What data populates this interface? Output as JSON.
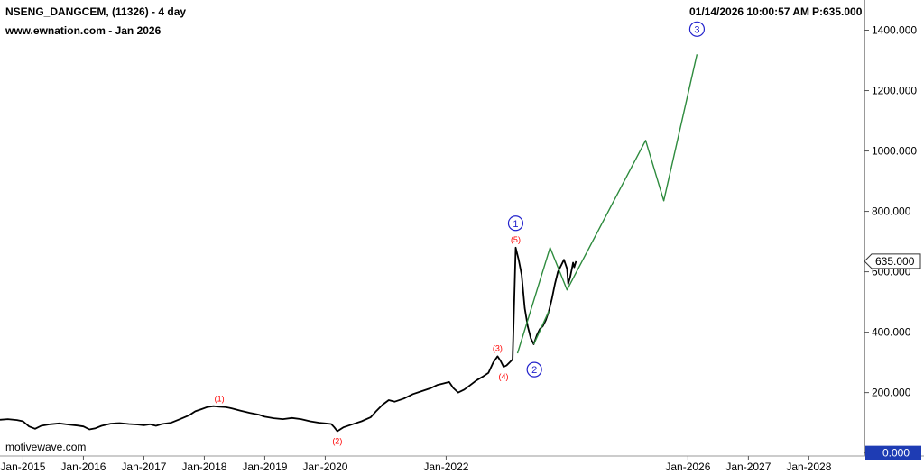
{
  "header": {
    "title": "NSENG_DANGCEM, (11326) - 4 day",
    "subtitle": "www.ewnation.com  - Jan 2026",
    "timestamp": "01/14/2026 10:00:57 AM",
    "price_label": "P:635.000"
  },
  "watermark": "motivewave.com",
  "chart_data": {
    "type": "line",
    "title": "NSENG_DANGCEM, (11326) - 4 day",
    "xlabel": "",
    "ylabel": "",
    "xlim": [
      2014.62,
      2028.92
    ],
    "ylim": [
      -10,
      1500
    ],
    "x_ticks": [
      {
        "x": 2015.0,
        "label": "Jan-2015"
      },
      {
        "x": 2016.0,
        "label": "Jan-2016"
      },
      {
        "x": 2017.0,
        "label": "Jan-2017"
      },
      {
        "x": 2018.0,
        "label": "Jan-2018"
      },
      {
        "x": 2019.0,
        "label": "Jan-2019"
      },
      {
        "x": 2020.0,
        "label": "Jan-2020"
      },
      {
        "x": 2022.0,
        "label": "Jan-2022"
      },
      {
        "x": 2026.0,
        "label": "Jan-2026"
      },
      {
        "x": 2027.0,
        "label": "Jan-2027"
      },
      {
        "x": 2028.0,
        "label": "Jan-2028"
      }
    ],
    "y_ticks": [
      {
        "y": 1400,
        "label": "1400.000"
      },
      {
        "y": 1200,
        "label": "1200.000"
      },
      {
        "y": 1000,
        "label": "1000.000"
      },
      {
        "y": 800,
        "label": "800.000"
      },
      {
        "y": 600,
        "label": "600.000"
      },
      {
        "y": 400,
        "label": "400.000"
      },
      {
        "y": 200,
        "label": "200.000"
      },
      {
        "y": 0,
        "label": "0.000"
      }
    ],
    "current_price": {
      "y": 635,
      "label": "635.000"
    },
    "series": [
      {
        "role": "price",
        "color": "#000000",
        "points": [
          [
            2014.62,
            110
          ],
          [
            2014.75,
            112
          ],
          [
            2014.9,
            109
          ],
          [
            2015.0,
            105
          ],
          [
            2015.1,
            88
          ],
          [
            2015.2,
            80
          ],
          [
            2015.3,
            90
          ],
          [
            2015.45,
            95
          ],
          [
            2015.6,
            98
          ],
          [
            2015.75,
            94
          ],
          [
            2015.9,
            91
          ],
          [
            2016.0,
            88
          ],
          [
            2016.1,
            78
          ],
          [
            2016.2,
            82
          ],
          [
            2016.3,
            90
          ],
          [
            2016.45,
            97
          ],
          [
            2016.6,
            99
          ],
          [
            2016.75,
            96
          ],
          [
            2016.9,
            94
          ],
          [
            2017.0,
            92
          ],
          [
            2017.1,
            95
          ],
          [
            2017.2,
            90
          ],
          [
            2017.3,
            96
          ],
          [
            2017.45,
            100
          ],
          [
            2017.6,
            112
          ],
          [
            2017.75,
            125
          ],
          [
            2017.85,
            138
          ],
          [
            2017.95,
            145
          ],
          [
            2018.05,
            152
          ],
          [
            2018.15,
            155
          ],
          [
            2018.25,
            153
          ],
          [
            2018.35,
            152
          ],
          [
            2018.45,
            148
          ],
          [
            2018.6,
            140
          ],
          [
            2018.75,
            133
          ],
          [
            2018.9,
            127
          ],
          [
            2019.0,
            120
          ],
          [
            2019.15,
            115
          ],
          [
            2019.3,
            112
          ],
          [
            2019.45,
            116
          ],
          [
            2019.6,
            112
          ],
          [
            2019.75,
            105
          ],
          [
            2019.9,
            100
          ],
          [
            2020.0,
            98
          ],
          [
            2020.1,
            96
          ],
          [
            2020.15,
            85
          ],
          [
            2020.2,
            72
          ],
          [
            2020.3,
            85
          ],
          [
            2020.45,
            95
          ],
          [
            2020.6,
            105
          ],
          [
            2020.75,
            118
          ],
          [
            2020.85,
            140
          ],
          [
            2020.95,
            160
          ],
          [
            2021.05,
            175
          ],
          [
            2021.15,
            170
          ],
          [
            2021.3,
            180
          ],
          [
            2021.45,
            195
          ],
          [
            2021.6,
            205
          ],
          [
            2021.75,
            215
          ],
          [
            2021.85,
            225
          ],
          [
            2021.95,
            230
          ],
          [
            2022.05,
            235
          ],
          [
            2022.12,
            215
          ],
          [
            2022.2,
            200
          ],
          [
            2022.3,
            210
          ],
          [
            2022.4,
            225
          ],
          [
            2022.5,
            240
          ],
          [
            2022.6,
            252
          ],
          [
            2022.7,
            265
          ],
          [
            2022.78,
            300
          ],
          [
            2022.85,
            320
          ],
          [
            2022.9,
            305
          ],
          [
            2022.95,
            285
          ],
          [
            2023.0,
            290
          ],
          [
            2023.05,
            300
          ],
          [
            2023.1,
            310
          ],
          [
            2023.15,
            680
          ],
          [
            2023.2,
            640
          ],
          [
            2023.25,
            590
          ],
          [
            2023.3,
            480
          ],
          [
            2023.35,
            420
          ],
          [
            2023.4,
            380
          ],
          [
            2023.45,
            360
          ],
          [
            2023.5,
            390
          ],
          [
            2023.55,
            410
          ],
          [
            2023.6,
            420
          ],
          [
            2023.65,
            440
          ],
          [
            2023.7,
            470
          ],
          [
            2023.75,
            510
          ],
          [
            2023.8,
            560
          ],
          [
            2023.85,
            600
          ],
          [
            2023.9,
            620
          ],
          [
            2023.95,
            640
          ],
          [
            2024.0,
            610
          ],
          [
            2024.02,
            560
          ],
          [
            2024.05,
            580
          ],
          [
            2024.08,
            610
          ],
          [
            2024.1,
            630
          ],
          [
            2024.12,
            615
          ],
          [
            2024.15,
            635
          ]
        ]
      },
      {
        "role": "projection",
        "color": "#2e8b3e",
        "points": [
          [
            2023.18,
            330
          ],
          [
            2023.72,
            680
          ],
          [
            2024.0,
            540
          ],
          [
            2025.3,
            1035
          ],
          [
            2025.6,
            835
          ],
          [
            2026.15,
            1320
          ]
        ]
      },
      {
        "role": "projection",
        "color": "#2e8b3e",
        "points": [
          [
            2023.45,
            360
          ],
          [
            2023.7,
            470
          ]
        ]
      }
    ],
    "wave_labels": [
      {
        "text": "(1)",
        "x": 2018.25,
        "y": 153,
        "color": "#ff0000",
        "style": "minor",
        "position": "above"
      },
      {
        "text": "(2)",
        "x": 2020.2,
        "y": 72,
        "color": "#ff0000",
        "style": "minor",
        "position": "below"
      },
      {
        "text": "(3)",
        "x": 2022.85,
        "y": 320,
        "color": "#ff0000",
        "style": "minor",
        "position": "above"
      },
      {
        "text": "(4)",
        "x": 2022.95,
        "y": 285,
        "color": "#ff0000",
        "style": "minor",
        "position": "below"
      },
      {
        "text": "(5)",
        "x": 2023.15,
        "y": 680,
        "color": "#ff0000",
        "style": "minor",
        "position": "above"
      },
      {
        "text": "1",
        "x": 2023.15,
        "y": 680,
        "color": "#2222cc",
        "style": "major",
        "position": "above"
      },
      {
        "text": "2",
        "x": 2023.25,
        "y": 300,
        "color": "#2222cc",
        "style": "major",
        "position": "right"
      },
      {
        "text": "3",
        "x": 2026.15,
        "y": 1320,
        "color": "#2222cc",
        "style": "major",
        "position": "above"
      }
    ]
  }
}
